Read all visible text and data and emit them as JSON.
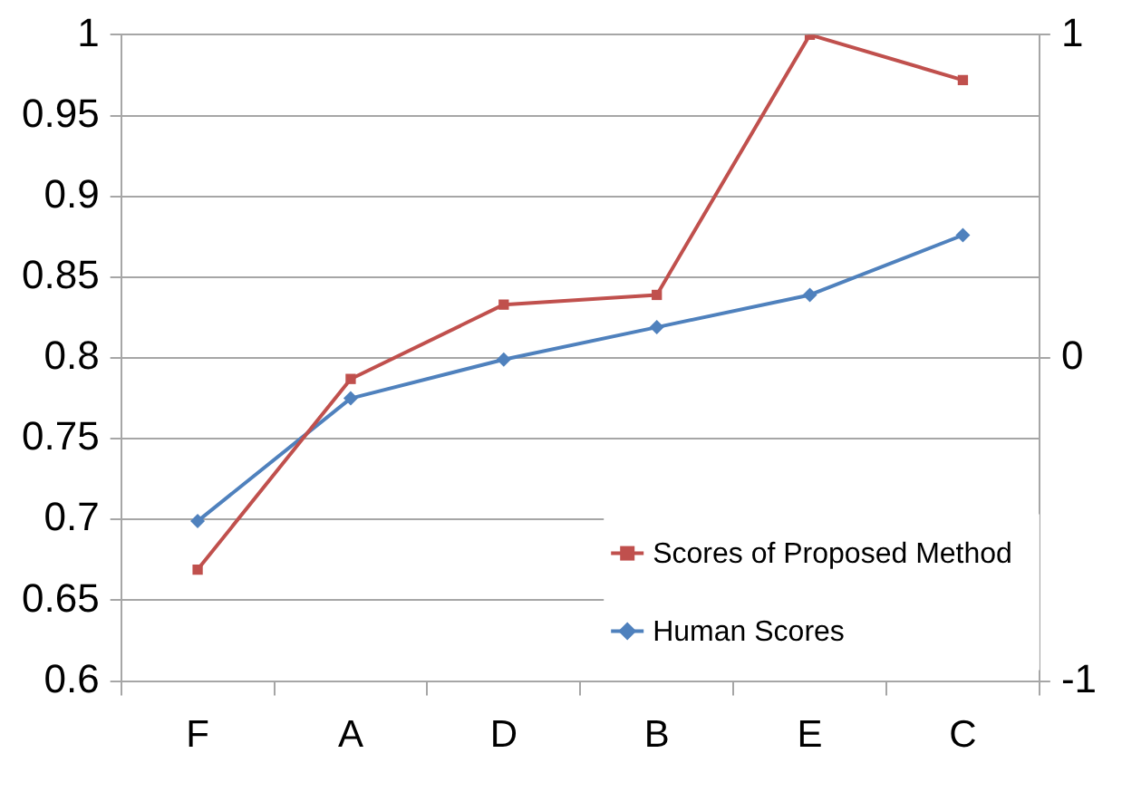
{
  "chart_data": {
    "type": "line",
    "categories": [
      "F",
      "A",
      "D",
      "B",
      "E",
      "C"
    ],
    "series": [
      {
        "name": "Scores of Proposed Method",
        "color": "#c0504d",
        "axis": "y2",
        "marker": "square",
        "values": [
          -0.655,
          -0.065,
          0.165,
          0.195,
          1,
          0.86
        ]
      },
      {
        "name": "Human Scores",
        "color": "#4f81bd",
        "marker": "diamond",
        "values": [
          0.699,
          0.775,
          0.799,
          0.819,
          0.839,
          0.876
        ]
      }
    ],
    "ylim": [
      0.6,
      1
    ],
    "yticks": [
      0.6,
      0.65,
      0.7,
      0.75,
      0.8,
      0.85,
      0.9,
      0.95,
      1
    ],
    "y2lim": [
      -1,
      1
    ],
    "y2ticks": [
      -1,
      0,
      1
    ],
    "grid": "y",
    "legend": "bottom right",
    "line_style": "solid"
  }
}
